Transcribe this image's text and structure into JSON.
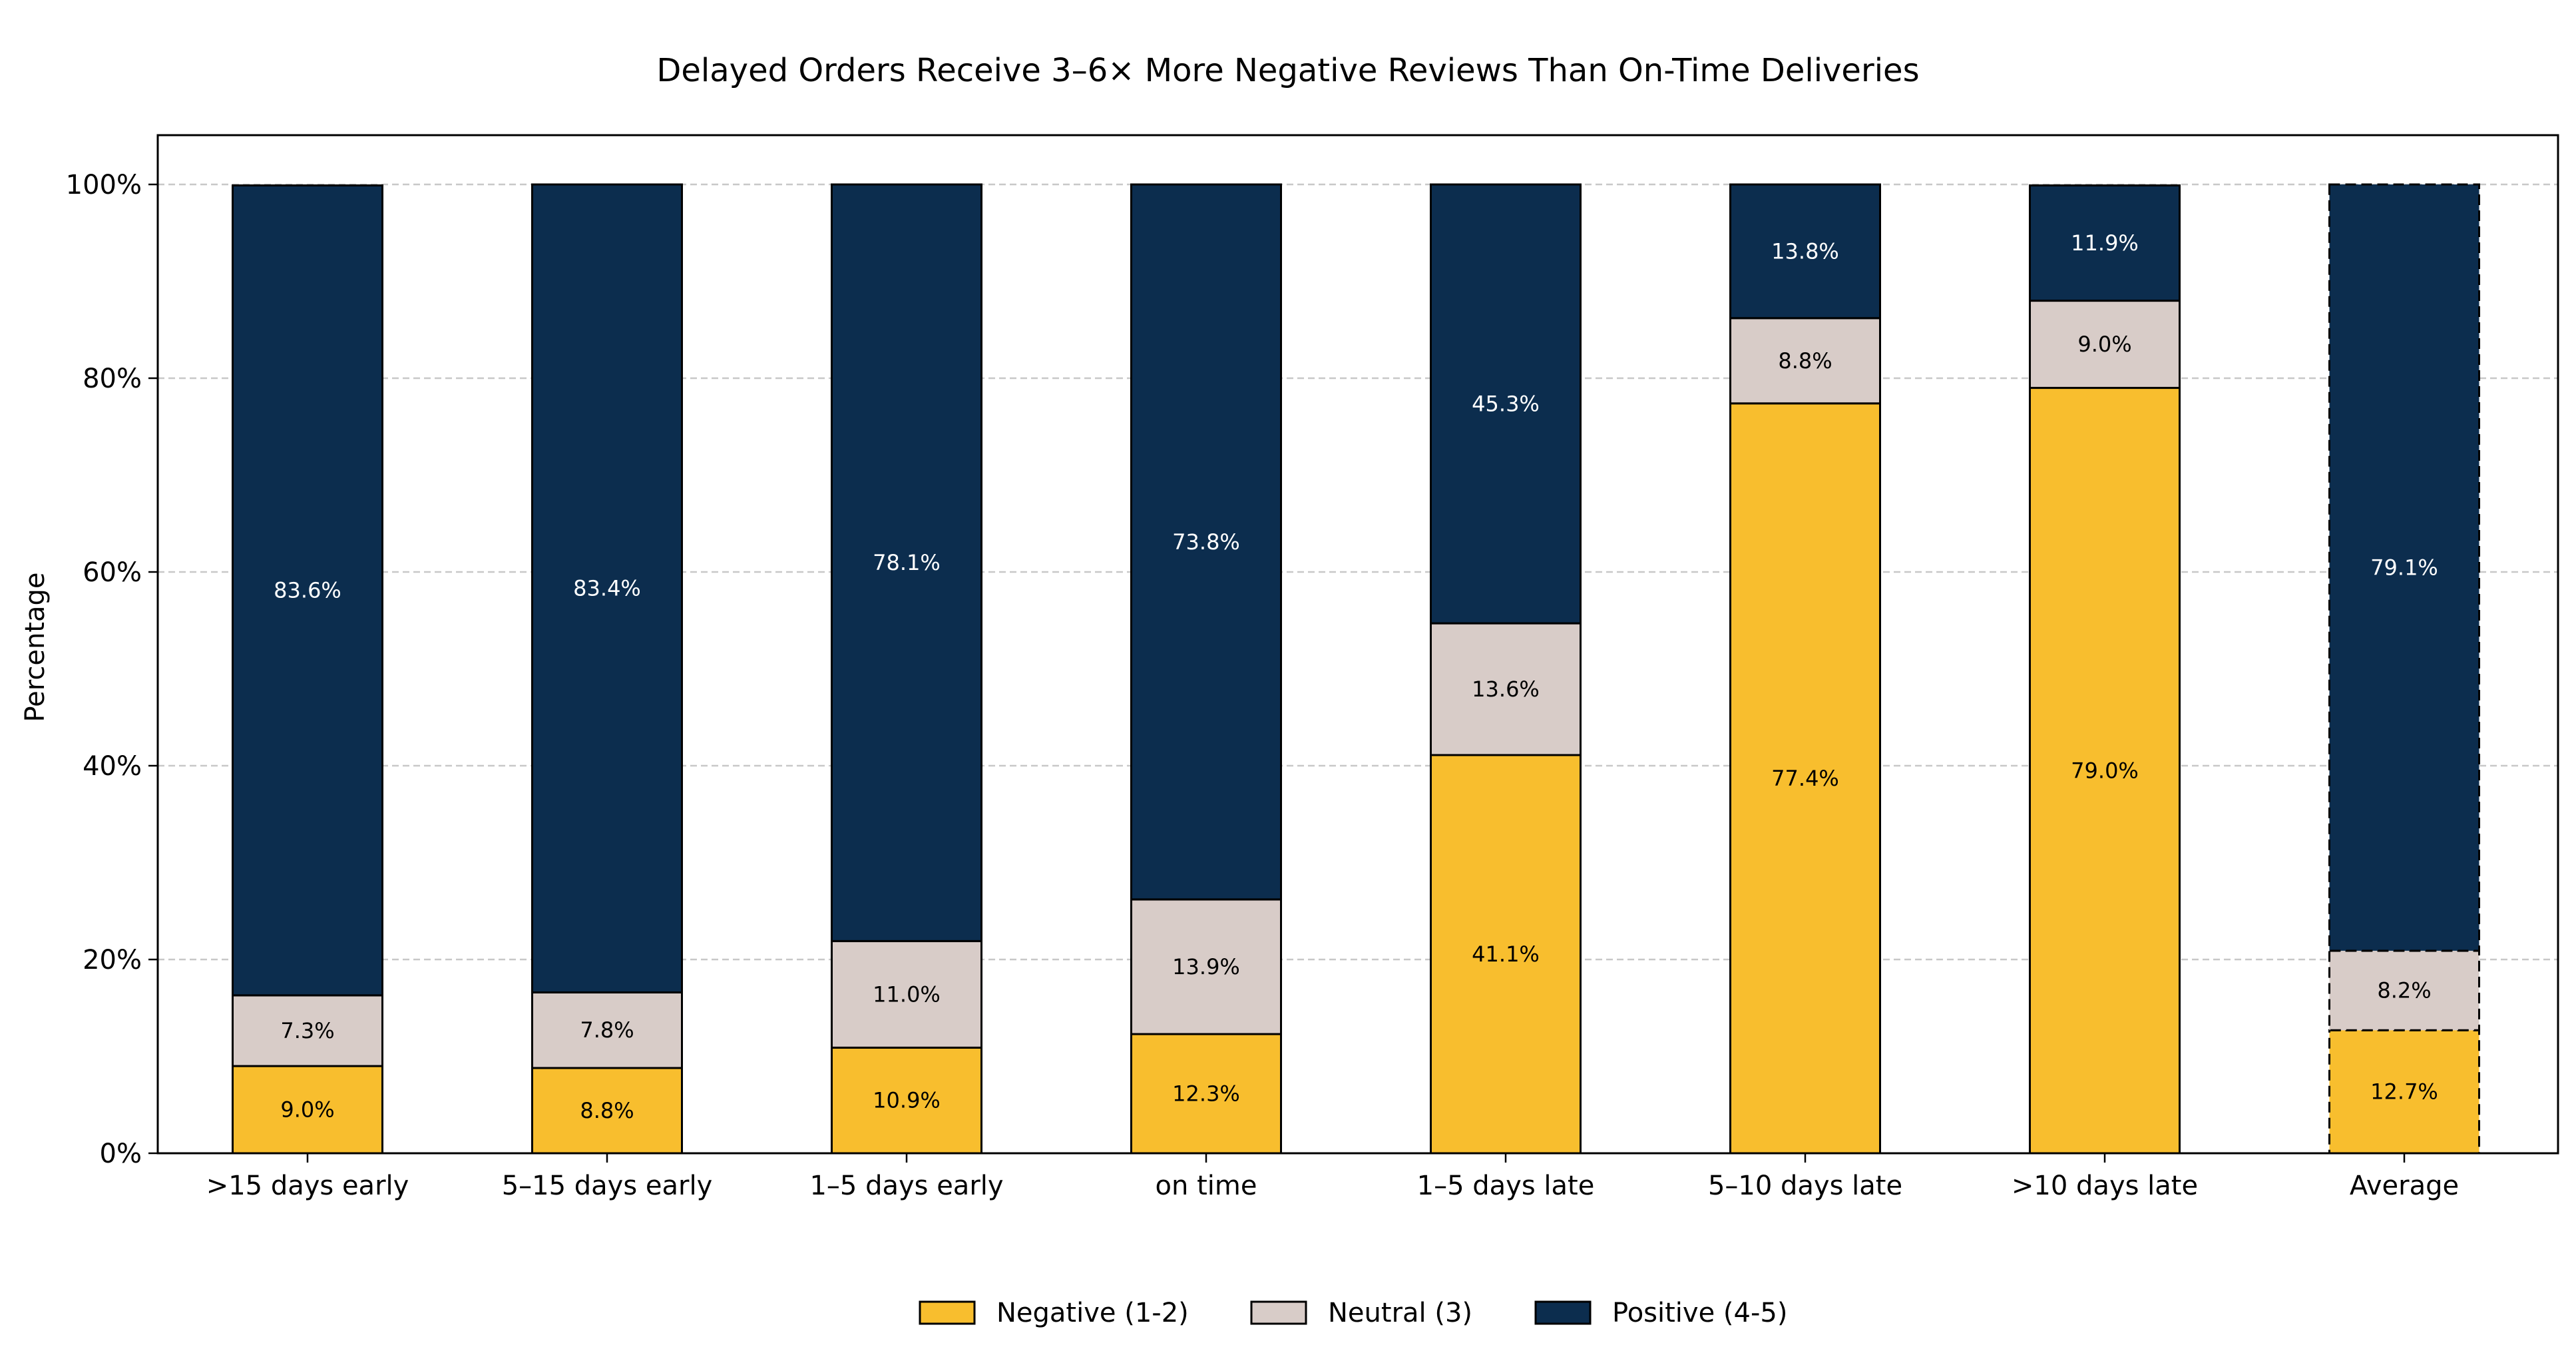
{
  "chart_data": {
    "type": "bar",
    "stacked": true,
    "title": "Delayed Orders Receive 3–6× More Negative Reviews Than On-Time Deliveries",
    "xlabel": "",
    "ylabel": "Percentage",
    "ylim": [
      0,
      100
    ],
    "yticks": [
      0,
      20,
      40,
      60,
      80,
      100
    ],
    "ytick_labels": [
      "0%",
      "20%",
      "40%",
      "60%",
      "80%",
      "100%"
    ],
    "grid": "horizontal dashed",
    "legend_placement": "bottom-center",
    "categories": [
      ">15 days early",
      "5–15 days early",
      "1–5 days early",
      "on time",
      "1–5 days late",
      "5–10 days late",
      ">10 days late",
      "Average"
    ],
    "highlighted_category": "Average",
    "series": [
      {
        "name": "Negative (1-2)",
        "color": "#f8be2e",
        "label_color": "#000000",
        "values": [
          9.0,
          8.8,
          10.9,
          12.3,
          41.1,
          77.4,
          79.0,
          12.7
        ],
        "labels": [
          "9.0%",
          "8.8%",
          "10.9%",
          "12.3%",
          "41.1%",
          "77.4%",
          "79.0%",
          "12.7%"
        ]
      },
      {
        "name": "Neutral (3)",
        "color": "#d8ccc8",
        "label_color": "#000000",
        "values": [
          7.3,
          7.8,
          11.0,
          13.9,
          13.6,
          8.8,
          9.0,
          8.2
        ],
        "labels": [
          "7.3%",
          "7.8%",
          "11.0%",
          "13.9%",
          "13.6%",
          "8.8%",
          "9.0%",
          "8.2%"
        ]
      },
      {
        "name": "Positive (4-5)",
        "color": "#0c2d4e",
        "label_color": "#ffffff",
        "values": [
          83.6,
          83.4,
          78.1,
          73.8,
          45.3,
          13.8,
          11.9,
          79.1
        ],
        "labels": [
          "83.6%",
          "83.4%",
          "78.1%",
          "73.8%",
          "45.3%",
          "13.8%",
          "11.9%",
          "79.1%"
        ]
      }
    ]
  }
}
